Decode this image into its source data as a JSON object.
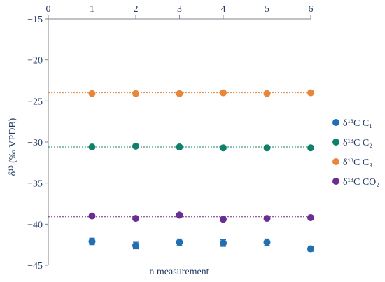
{
  "chart_data": {
    "type": "scatter",
    "xlabel": "n measurement",
    "ylabel": "δ¹³ (‰ VPDB)",
    "xlim": [
      0,
      6
    ],
    "ylim": [
      -45,
      -15
    ],
    "x_ticks": [
      "0",
      "1",
      "2",
      "3",
      "4",
      "5",
      "6"
    ],
    "y_ticks": [
      "−15",
      "−20",
      "−25",
      "−30",
      "−35",
      "−40",
      "−45"
    ],
    "x_axis_position": "top",
    "grid": false,
    "legend_position": "right",
    "series": [
      {
        "name": "δ¹³C C₁",
        "color": "#1f6fb2",
        "x": [
          1,
          2,
          3,
          4,
          5,
          6
        ],
        "y": [
          -42.1,
          -42.6,
          -42.2,
          -42.3,
          -42.2,
          -43.0
        ],
        "error": [
          0.4,
          0.4,
          0.4,
          0.4,
          0.4,
          0.3
        ],
        "mean_line": -42.4
      },
      {
        "name": "δ¹³C C₂",
        "color": "#11806b",
        "x": [
          1,
          2,
          3,
          4,
          5,
          6
        ],
        "y": [
          -30.6,
          -30.5,
          -30.6,
          -30.7,
          -30.7,
          -30.7
        ],
        "error": [
          0,
          0,
          0,
          0,
          0,
          0
        ],
        "mean_line": -30.6
      },
      {
        "name": "δ¹³C C₃",
        "color": "#e8873a",
        "x": [
          1,
          2,
          3,
          4,
          5,
          6
        ],
        "y": [
          -24.1,
          -24.1,
          -24.1,
          -24.0,
          -24.1,
          -24.0
        ],
        "error": [
          0,
          0,
          0,
          0,
          0,
          0
        ],
        "mean_line": -24.0
      },
      {
        "name": "δ¹³C CO₂",
        "color": "#6b2d91",
        "x": [
          1,
          2,
          3,
          4,
          5,
          6
        ],
        "y": [
          -39.0,
          -39.3,
          -38.9,
          -39.4,
          -39.3,
          -39.2
        ],
        "error": [
          0,
          0,
          0,
          0,
          0,
          0
        ],
        "mean_line": -39.1
      }
    ]
  }
}
